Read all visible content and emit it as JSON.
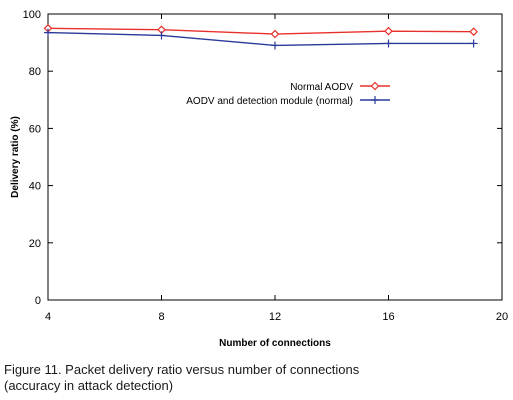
{
  "chart_data": {
    "type": "line",
    "title": "",
    "xlabel": "Number of connections",
    "ylabel": "Delivery ratio (%)",
    "xlim": [
      4,
      20
    ],
    "ylim": [
      0,
      100
    ],
    "xticks": [
      4,
      8,
      12,
      16,
      20
    ],
    "yticks": [
      0,
      20,
      40,
      60,
      80,
      100
    ],
    "grid": false,
    "legend_position": "top-right",
    "x": [
      4,
      8,
      12,
      16,
      19
    ],
    "series": [
      {
        "name": "Normal AODV",
        "values": [
          95,
          94.5,
          93,
          94,
          93.8
        ],
        "color": "#e8302a",
        "marker": "diamond"
      },
      {
        "name": "AODV and detection module (normal)",
        "values": [
          93.5,
          92.5,
          89,
          89.7,
          89.7
        ],
        "color": "#2a3a9a",
        "marker": "plus"
      }
    ]
  },
  "caption": {
    "line1": "Figure 11. Packet delivery ratio versus number of connections",
    "line2": "(accuracy in attack detection)"
  }
}
